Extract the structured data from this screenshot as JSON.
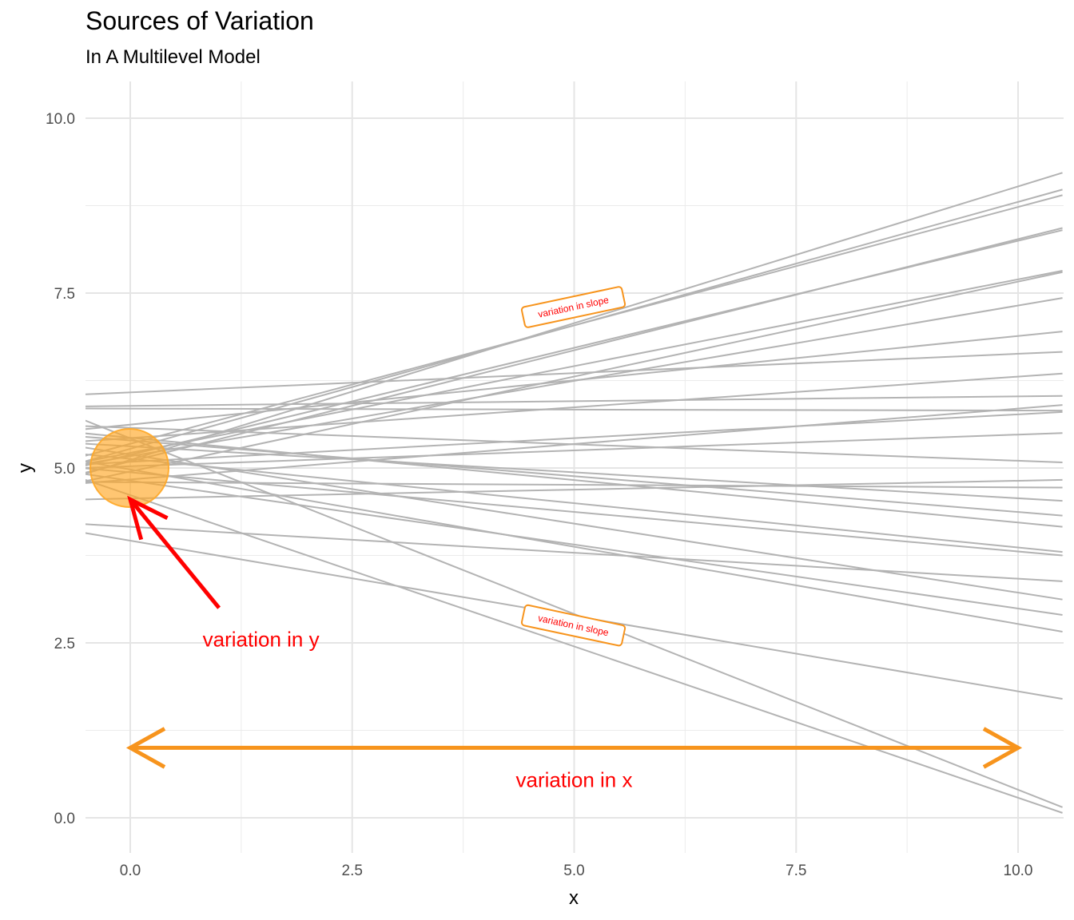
{
  "chart_data": {
    "type": "line",
    "title": "Sources of Variation",
    "subtitle": "In A Multilevel Model",
    "xlabel": "x",
    "ylabel": "y",
    "xlim": [
      -0.55,
      10.5
    ],
    "ylim": [
      -0.5,
      10.5
    ],
    "x_ticks": [
      0.0,
      2.5,
      5.0,
      7.5,
      10.0
    ],
    "x_tick_labels": [
      "0.0",
      "2.5",
      "5.0",
      "7.5",
      "10.0"
    ],
    "y_ticks": [
      0.0,
      2.5,
      5.0,
      7.5,
      10.0
    ],
    "y_tick_labels": [
      "0.0",
      "2.5",
      "5.0",
      "7.5",
      "10.0"
    ],
    "grid": true,
    "line_color": "#b3b3b3",
    "lines": [
      {
        "x": [
          -0.55,
          10.5
        ],
        "y": [
          4.9,
          9.22
        ]
      },
      {
        "x": [
          -0.55,
          10.5
        ],
        "y": [
          5.08,
          8.98
        ]
      },
      {
        "x": [
          -0.55,
          10.5
        ],
        "y": [
          5.16,
          8.9
        ]
      },
      {
        "x": [
          -0.55,
          10.5
        ],
        "y": [
          4.92,
          8.43
        ]
      },
      {
        "x": [
          -0.55,
          10.5
        ],
        "y": [
          5.02,
          8.4
        ]
      },
      {
        "x": [
          -0.55,
          10.5
        ],
        "y": [
          5.08,
          7.82
        ]
      },
      {
        "x": [
          -0.55,
          10.5
        ],
        "y": [
          4.8,
          7.8
        ]
      },
      {
        "x": [
          -0.55,
          10.5
        ],
        "y": [
          5.05,
          7.43
        ]
      },
      {
        "x": [
          -0.55,
          10.5
        ],
        "y": [
          5.55,
          6.95
        ]
      },
      {
        "x": [
          -0.55,
          10.5
        ],
        "y": [
          6.05,
          6.66
        ]
      },
      {
        "x": [
          -0.55,
          10.5
        ],
        "y": [
          5.38,
          6.35
        ]
      },
      {
        "x": [
          -0.55,
          10.5
        ],
        "y": [
          5.88,
          6.03
        ]
      },
      {
        "x": [
          -0.55,
          10.5
        ],
        "y": [
          5.85,
          5.82
        ]
      },
      {
        "x": [
          -0.55,
          10.5
        ],
        "y": [
          4.78,
          5.9
        ]
      },
      {
        "x": [
          -0.55,
          10.5
        ],
        "y": [
          5.05,
          5.8
        ]
      },
      {
        "x": [
          -0.55,
          10.5
        ],
        "y": [
          5.0,
          5.5
        ]
      },
      {
        "x": [
          -0.55,
          10.5
        ],
        "y": [
          5.6,
          5.08
        ]
      },
      {
        "x": [
          -0.55,
          10.5
        ],
        "y": [
          4.55,
          4.83
        ]
      },
      {
        "x": [
          -0.55,
          10.5
        ],
        "y": [
          4.8,
          4.72
        ]
      },
      {
        "x": [
          -0.55,
          10.5
        ],
        "y": [
          5.35,
          4.53
        ]
      },
      {
        "x": [
          -0.55,
          10.5
        ],
        "y": [
          5.45,
          4.32
        ]
      },
      {
        "x": [
          -0.55,
          10.5
        ],
        "y": [
          5.5,
          4.16
        ]
      },
      {
        "x": [
          -0.55,
          10.5
        ],
        "y": [
          5.2,
          3.8
        ]
      },
      {
        "x": [
          -0.55,
          10.5
        ],
        "y": [
          5.0,
          3.75
        ]
      },
      {
        "x": [
          -0.55,
          10.5
        ],
        "y": [
          4.2,
          3.38
        ]
      },
      {
        "x": [
          -0.55,
          10.5
        ],
        "y": [
          5.3,
          3.12
        ]
      },
      {
        "x": [
          -0.55,
          10.5
        ],
        "y": [
          4.92,
          2.9
        ]
      },
      {
        "x": [
          -0.55,
          10.5
        ],
        "y": [
          5.1,
          2.66
        ]
      },
      {
        "x": [
          -0.55,
          10.5
        ],
        "y": [
          4.08,
          1.7
        ]
      },
      {
        "x": [
          -0.55,
          10.5
        ],
        "y": [
          5.7,
          0.15
        ]
      },
      {
        "x": [
          -0.55,
          10.5
        ],
        "y": [
          4.85,
          0.07
        ]
      }
    ],
    "highlight_point": {
      "x": 0.0,
      "y": 5.0,
      "color": "#ffa726"
    },
    "annotations": [
      {
        "text": "variation in slope",
        "x": 5.0,
        "y": 7.3,
        "angle": -12
      },
      {
        "text": "variation in slope",
        "x": 5.0,
        "y": 2.75,
        "angle": 12
      },
      {
        "text": "variation in y",
        "x": 1.5,
        "y": 2.45
      },
      {
        "text": "variation in x",
        "x": 5.0,
        "y": 0.45
      }
    ],
    "arrows": [
      {
        "name": "variation-in-y",
        "from": [
          1.0,
          3.0
        ],
        "to": [
          0.0,
          4.55
        ],
        "color": "#ff0000"
      },
      {
        "name": "variation-in-x",
        "from": [
          0.0,
          1.0
        ],
        "to": [
          10.0,
          1.0
        ],
        "double": true,
        "color": "#f7941d"
      }
    ],
    "colors": {
      "annotation_text": "#ff0000",
      "arrow_x": "#f7941d",
      "label_border": "#f7941d"
    }
  }
}
